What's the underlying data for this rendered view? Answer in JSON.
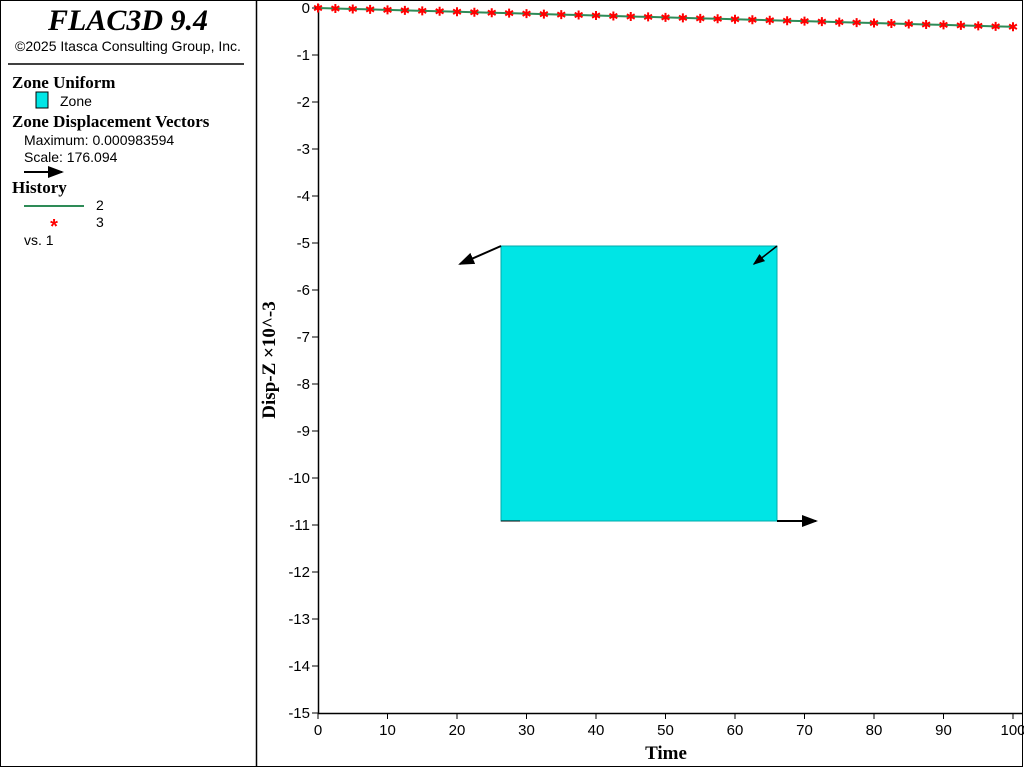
{
  "panel": {
    "title": "FLAC3D 9.4",
    "copyright": "©2025 Itasca Consulting Group, Inc.",
    "zone_heading": "Zone Uniform",
    "zone_label": "Zone",
    "vectors_heading": "Zone Displacement Vectors",
    "vectors_max": "Maximum: 0.000983594",
    "vectors_scale": "Scale: 176.094",
    "history_heading": "History",
    "history_vs": "vs. 1"
  },
  "chart_data": {
    "type": "line",
    "x_label": "Time",
    "y_label": "Disp-Z ×10^-3",
    "x": [
      0,
      2.5,
      5,
      7.5,
      10,
      12.5,
      15,
      17.5,
      20,
      22.5,
      25,
      27.5,
      30,
      32.5,
      35,
      37.5,
      40,
      42.5,
      45,
      47.5,
      50,
      52.5,
      55,
      57.5,
      60,
      62.5,
      65,
      67.5,
      70,
      72.5,
      75,
      77.5,
      80,
      82.5,
      85,
      87.5,
      90,
      92.5,
      95,
      97.5,
      100
    ],
    "series": [
      {
        "name": "2",
        "color": "#2e8b57",
        "style": "line",
        "values": [
          0,
          -0.01,
          -0.02,
          -0.03,
          -0.04,
          -0.05,
          -0.06,
          -0.07,
          -0.08,
          -0.09,
          -0.1,
          -0.11,
          -0.12,
          -0.13,
          -0.14,
          -0.15,
          -0.16,
          -0.17,
          -0.18,
          -0.19,
          -0.2,
          -0.21,
          -0.22,
          -0.23,
          -0.24,
          -0.25,
          -0.26,
          -0.27,
          -0.28,
          -0.29,
          -0.3,
          -0.31,
          -0.32,
          -0.33,
          -0.34,
          -0.35,
          -0.36,
          -0.37,
          -0.38,
          -0.39,
          -0.4
        ]
      },
      {
        "name": "3",
        "color": "#ff0000",
        "style": "star",
        "values": [
          0,
          -0.01,
          -0.02,
          -0.03,
          -0.04,
          -0.05,
          -0.06,
          -0.07,
          -0.08,
          -0.09,
          -0.1,
          -0.11,
          -0.12,
          -0.13,
          -0.14,
          -0.15,
          -0.16,
          -0.17,
          -0.18,
          -0.19,
          -0.2,
          -0.21,
          -0.22,
          -0.23,
          -0.24,
          -0.25,
          -0.26,
          -0.27,
          -0.28,
          -0.29,
          -0.3,
          -0.31,
          -0.32,
          -0.33,
          -0.34,
          -0.35,
          -0.36,
          -0.37,
          -0.38,
          -0.39,
          -0.4
        ]
      }
    ],
    "xlim": [
      0,
      100
    ],
    "xticks": [
      0,
      10,
      20,
      30,
      40,
      50,
      60,
      70,
      80,
      90,
      100
    ],
    "ylim": [
      -15,
      0
    ],
    "yticks": [
      0,
      -1,
      -2,
      -3,
      -4,
      -5,
      -6,
      -7,
      -8,
      -9,
      -10,
      -11,
      -12,
      -13,
      -14,
      -15
    ]
  }
}
